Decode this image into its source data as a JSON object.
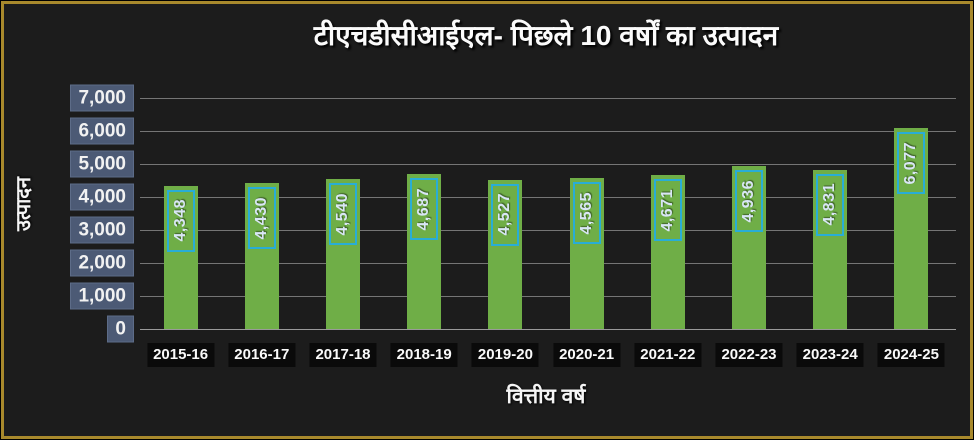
{
  "chart": {
    "title": "टीएचडीसीआईएल- पिछले 10 वर्षों का उत्पादन",
    "xlabel": "वित्तीय वर्ष",
    "ylabel": "उत्पादन"
  },
  "chart_data": {
    "type": "bar",
    "title": "टीएचडीसीआईएल- पिछले 10 वर्षों का उत्पादन",
    "xlabel": "वित्तीय वर्ष",
    "ylabel": "उत्पादन",
    "categories": [
      "2015-16",
      "2016-17",
      "2017-18",
      "2018-19",
      "2019-20",
      "2020-21",
      "2021-22",
      "2022-23",
      "2023-24",
      "2024-25"
    ],
    "values": [
      4348,
      4430,
      4540,
      4687,
      4527,
      4565,
      4671,
      4936,
      4831,
      6077
    ],
    "value_labels": [
      "4,348",
      "4,430",
      "4,540",
      "4,687",
      "4,527",
      "4,565",
      "4,671",
      "4,936",
      "4,831",
      "6,077"
    ],
    "ylim": [
      0,
      7000
    ],
    "yticks": [
      0,
      1000,
      2000,
      3000,
      4000,
      5000,
      6000,
      7000
    ],
    "ytick_labels": [
      "0",
      "1,000",
      "2,000",
      "3,000",
      "4,000",
      "5,000",
      "6,000",
      "7,000"
    ],
    "grid": "horizontal",
    "legend": "none",
    "data_label_orientation": "vertical-bottom-to-top",
    "colors": {
      "background": "#1c1c1c",
      "frame_border": "#a8892c",
      "bar": "#6fae47",
      "data_label_border": "#29add6",
      "data_label_text": "#d9e6f5",
      "ytick_background": "#4c5a75",
      "xtick_background": "#0a0a0a",
      "gridline": "#757575",
      "text": "#f5f5f5"
    }
  }
}
